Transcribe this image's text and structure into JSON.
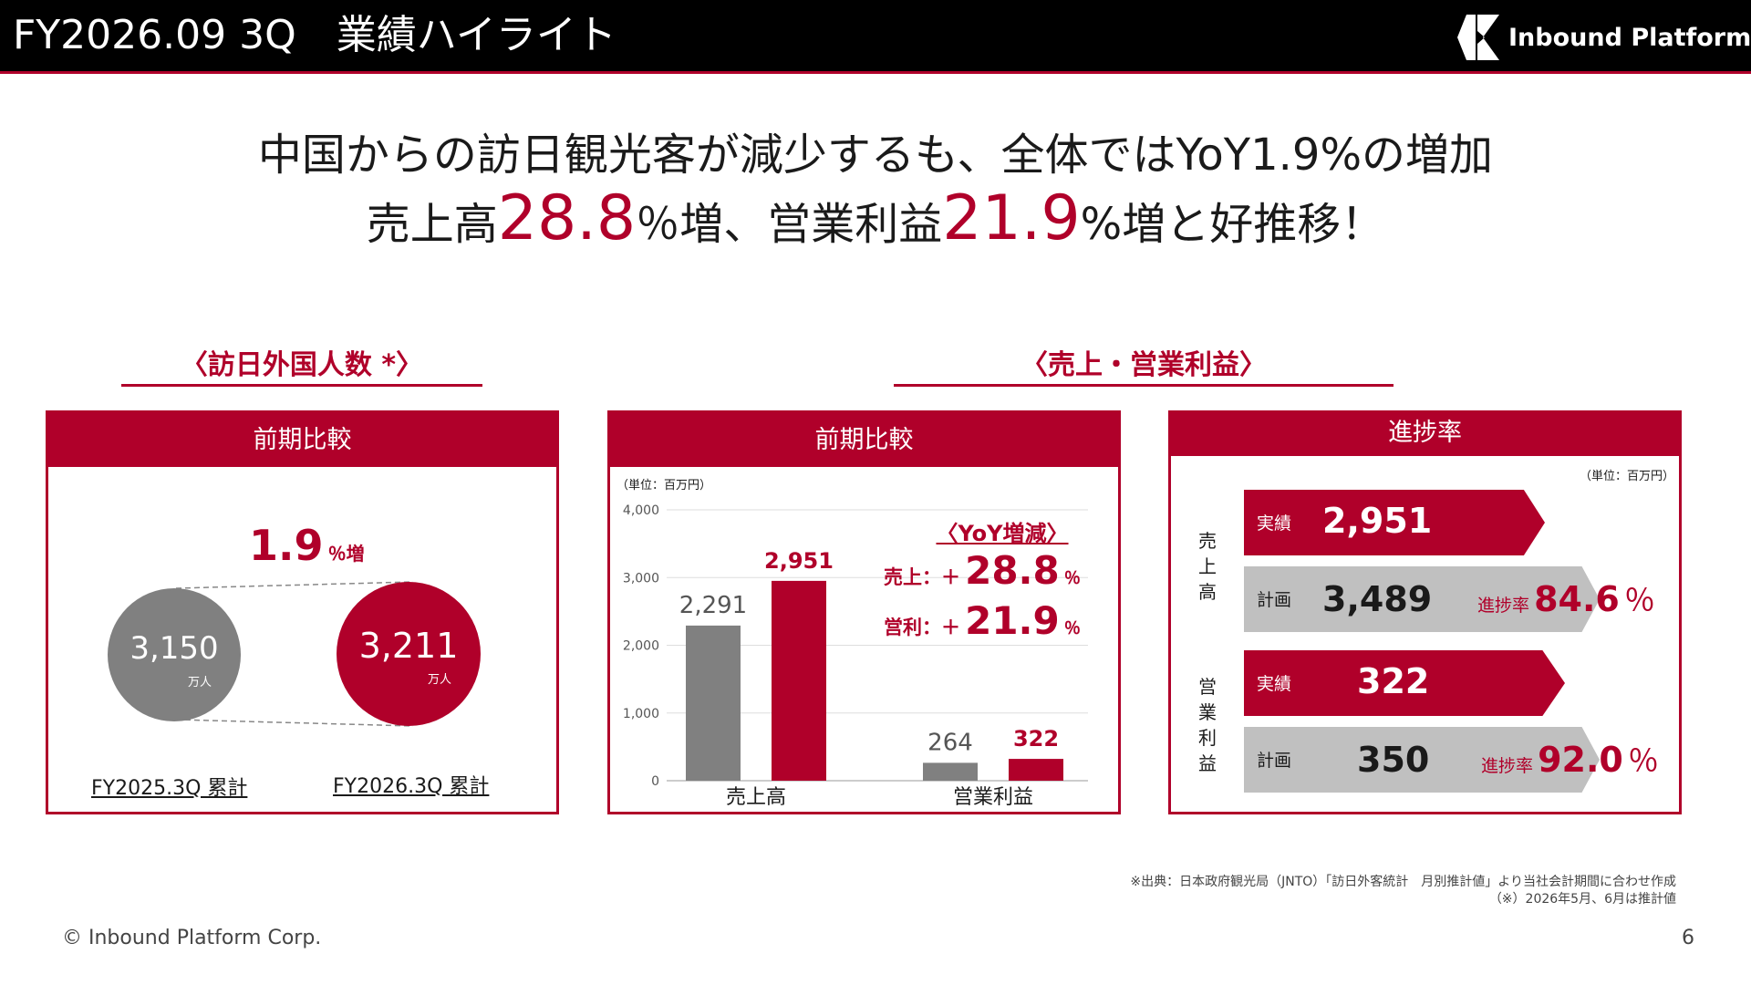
{
  "header": {
    "title": "FY2026.09 3Q　業績ハイライト",
    "logo_text": "Inbound Platform"
  },
  "headline": {
    "line1": "中国からの訪日観光客が減少するも、全体ではYoY1.9%の増加",
    "line2_a": "売上高",
    "line2_num1": "28.8",
    "line2_b": "％増、営業利益",
    "line2_num2": "21.9",
    "line2_c": "%増と好推移！"
  },
  "visitors_section": {
    "title": "〈訪日外国人数 *〉",
    "panel_title": "前期比較",
    "growth_value": "1.9",
    "growth_unit": "％増",
    "prev": {
      "value": "3,150",
      "unit": "万人",
      "label": "FY2025.3Q 累計"
    },
    "curr": {
      "value": "3,211",
      "unit": "万人",
      "label": "FY2026.3Q 累計"
    }
  },
  "sales_section": {
    "title": "〈売上・営業利益〉",
    "panel_title": "前期比較",
    "unit_note": "（単位：百万円）",
    "yoy": {
      "title": "〈YoY増減〉",
      "sales_label": "売上：＋",
      "sales_value": "28.8",
      "profit_label": "営利：＋",
      "profit_value": "21.9",
      "unit": "％"
    }
  },
  "chart_data": {
    "type": "bar",
    "title": "",
    "xlabel": "",
    "ylabel": "",
    "ylim": [
      0,
      4000
    ],
    "yticks": [
      "4,000",
      "3,000",
      "2,000",
      "1,000",
      "0"
    ],
    "categories": [
      "売上高",
      "営業利益"
    ],
    "series": [
      {
        "values": [
          2291,
          264
        ],
        "labels": [
          "2,291",
          "264"
        ],
        "color": "#808080"
      },
      {
        "values": [
          2951,
          322
        ],
        "labels": [
          "2,951",
          "322"
        ],
        "color": "#b0002a"
      }
    ],
    "grid": true
  },
  "progress": {
    "panel_title": "進捗率",
    "unit_note": "（単位：百万円）",
    "sales": {
      "group_label": [
        "売",
        "上",
        "高"
      ],
      "actual_label": "実績",
      "actual_value": "2,951",
      "plan_label": "計画",
      "plan_value": "3,489",
      "rate_label": "進捗率",
      "rate_value": "84.6",
      "rate_unit": "％"
    },
    "profit": {
      "group_label": [
        "営",
        "業",
        "利",
        "益"
      ],
      "actual_label": "実績",
      "actual_value": "322",
      "plan_label": "計画",
      "plan_value": "350",
      "rate_label": "進捗率",
      "rate_value": "92.0",
      "rate_unit": "％"
    }
  },
  "footnotes": {
    "line1": "※出典：日本政府観光局（JNTO）「訪日外客統計　月別推計値」より当社会計期間に合わせ作成",
    "line2": "（※）2026年5月、6月は推計値"
  },
  "footer": {
    "copyright": "© Inbound Platform Corp.",
    "page_number": "6"
  },
  "colors": {
    "accent": "#b0002a",
    "gray": "#808080",
    "light_gray": "#c0c0c0"
  }
}
